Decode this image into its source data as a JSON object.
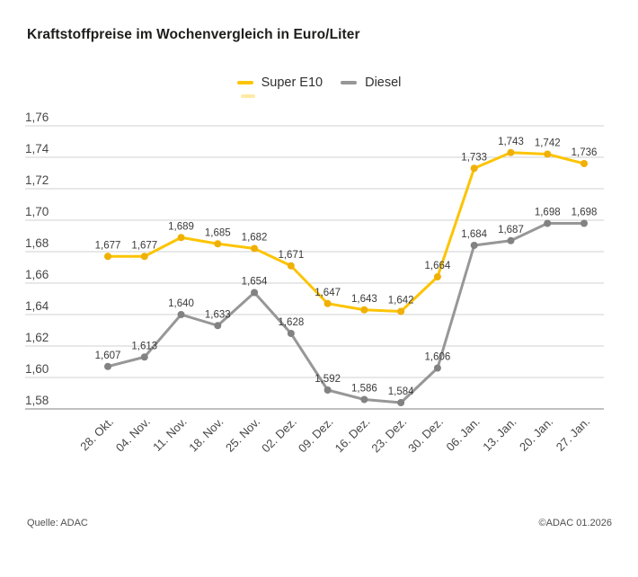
{
  "title": "Kraftstoffpreise im Wochenvergleich in Euro/Liter",
  "legend": {
    "items": [
      {
        "label": "Super E10",
        "color": "#fcc404",
        "point_color": "#f0b005"
      },
      {
        "label": "Diesel",
        "color": "#979797",
        "point_color": "#828282"
      }
    ]
  },
  "footer": {
    "source": "Quelle: ADAC",
    "copyright": "©ADAC 01.2026"
  },
  "chart_data": {
    "type": "line",
    "title": "Kraftstoffpreise im Wochenvergleich in Euro/Liter",
    "unit": "Euro/Liter",
    "categories": [
      "28. Okt.",
      "04. Nov.",
      "11. Nov.",
      "18. Nov.",
      "25. Nov.",
      "02. Dez.",
      "09. Dez.",
      "16. Dez.",
      "23. Dez.",
      "30. Dez.",
      "06. Jan.",
      "13. Jan.",
      "20. Jan.",
      "27. Jan."
    ],
    "series": [
      {
        "name": "Super E10",
        "color": "#fcc404",
        "point_color": "#f0b005",
        "values": [
          1.677,
          1.677,
          1.689,
          1.685,
          1.682,
          1.671,
          1.647,
          1.643,
          1.642,
          1.664,
          1.733,
          1.743,
          1.742,
          1.736
        ],
        "labels": [
          "1,677",
          "1,677",
          "1,689",
          "1,685",
          "1,682",
          "1,671",
          "1,647",
          "1,643",
          "1,642",
          "1,664",
          "1,733",
          "1,743",
          "1,742",
          "1,736"
        ]
      },
      {
        "name": "Diesel",
        "color": "#979797",
        "point_color": "#828282",
        "values": [
          1.607,
          1.613,
          1.64,
          1.633,
          1.654,
          1.628,
          1.592,
          1.586,
          1.584,
          1.606,
          1.684,
          1.687,
          1.698,
          1.698
        ],
        "labels": [
          "1,607",
          "1,613",
          "1,640",
          "1,633",
          "1,654",
          "1,628",
          "1,592",
          "1,586",
          "1,584",
          "1,606",
          "1,684",
          "1,687",
          "1,698",
          "1,698"
        ]
      }
    ],
    "ylim": [
      1.58,
      1.76
    ],
    "ytick_values": [
      1.58,
      1.6,
      1.62,
      1.64,
      1.66,
      1.68,
      1.7,
      1.72,
      1.74,
      1.76
    ],
    "ytick_labels": [
      "1,58",
      "1,60",
      "1,62",
      "1,64",
      "1,66",
      "1,68",
      "1,70",
      "1,72",
      "1,74",
      "1,76"
    ],
    "grid": "horizontal",
    "legend_position": "top-center",
    "x_label_rotation": -45,
    "grid_color": "#d1d1d1",
    "baseline_color": "#ababab",
    "axis_label_color": "#474747",
    "data_label_color": "#3a3a3a"
  }
}
